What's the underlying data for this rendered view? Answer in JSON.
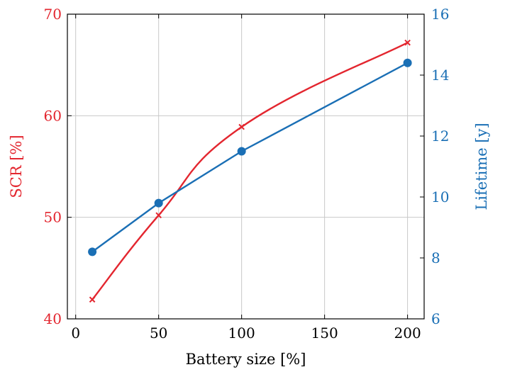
{
  "chart_data": {
    "type": "line",
    "xlabel": "Battery size [%]",
    "ylabel_left": "SCR [%]",
    "ylabel_right": "Lifetime [y]",
    "xlim": [
      -5,
      210
    ],
    "ylim_left": [
      40,
      70
    ],
    "ylim_right": [
      6,
      16
    ],
    "xticks": [
      "0",
      "50",
      "100",
      "150",
      "200"
    ],
    "xtick_values": [
      0,
      50,
      100,
      150,
      200
    ],
    "yticks_left": [
      "40",
      "50",
      "60",
      "70"
    ],
    "ytick_values_left": [
      40,
      50,
      60,
      70
    ],
    "yticks_right": [
      "6",
      "8",
      "10",
      "12",
      "14",
      "16"
    ],
    "ytick_values_right": [
      6,
      8,
      10,
      12,
      14,
      16
    ],
    "grid": true,
    "series": [
      {
        "axis": "left",
        "color": "#e3262f",
        "marker": "x",
        "smooth": true,
        "x": [
          10,
          50,
          100,
          200
        ],
        "y": [
          41.9,
          50.2,
          58.9,
          67.2
        ]
      },
      {
        "axis": "right",
        "color": "#1a6fb5",
        "marker": "circle",
        "smooth": false,
        "x": [
          10,
          50,
          100,
          200
        ],
        "y": [
          8.2,
          9.8,
          11.5,
          14.4
        ]
      }
    ]
  }
}
